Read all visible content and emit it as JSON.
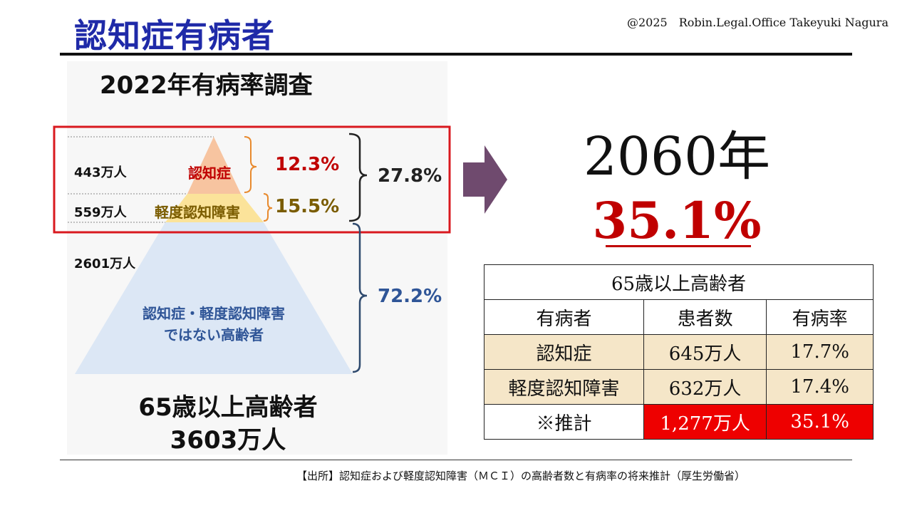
{
  "header": {
    "title": "認知症有病者",
    "copyright": "@2025　Robin.Legal.Office Takeyuki Nagura"
  },
  "figure": {
    "survey_title": "2022年有病率調査",
    "tiers": [
      {
        "count": "443万人",
        "label": "認知症",
        "percent": "12.3%",
        "color": "#f7c4a0",
        "label_color": "#c00000",
        "pct_color": "#c00000"
      },
      {
        "count": "559万人",
        "label": "軽度認知障害",
        "percent": "15.5%",
        "color": "#fbe39a",
        "label_color": "#7a5c00",
        "pct_color": "#7a5c00"
      },
      {
        "count": "2601万人",
        "label_line1": "認知症・軽度認知障害",
        "label_line2": "ではない高齢者",
        "percent": "72.2%",
        "color": "#dce7f5",
        "label_color": "#2f5597",
        "pct_color": "#2f5597"
      }
    ],
    "combined_percent": "27.8%",
    "total_line1": "65歳以上高齢者",
    "total_line2": "3603万人",
    "highlight_color": "#d9191f",
    "arrow_color": "#6f4a6e"
  },
  "projection": {
    "year": "2060年",
    "rate": "35.1%"
  },
  "table": {
    "caption": "65歳以上高齢者",
    "headers": [
      "有病者",
      "患者数",
      "有病率"
    ],
    "rows": [
      [
        "認知症",
        "645万人",
        "17.7%"
      ],
      [
        "軽度認知障害",
        "632万人",
        "17.4%"
      ],
      [
        "※推計",
        "1,277万人",
        "35.1%"
      ]
    ]
  },
  "source": "【出所】認知症および軽度認知障害（ＭＣＩ）の高齢者数と有病率の将来推計（厚生労働省）"
}
